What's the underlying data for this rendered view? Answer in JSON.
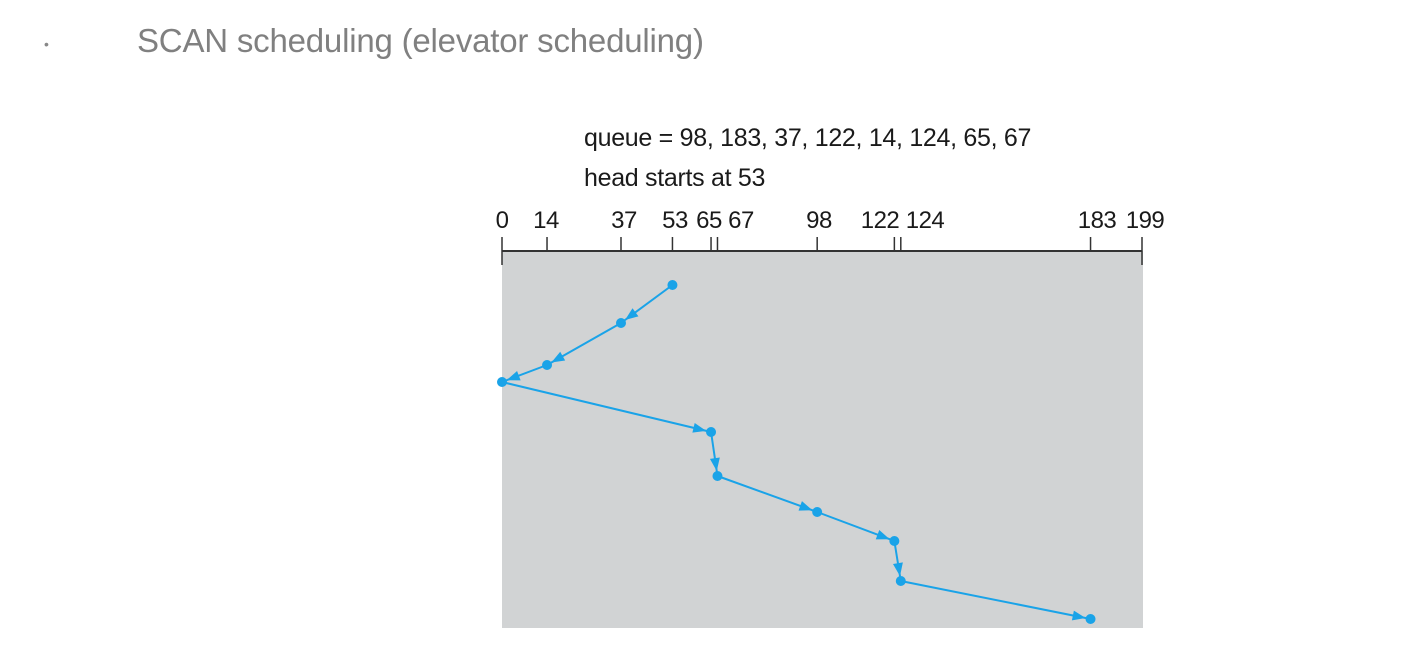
{
  "slide": {
    "bullet": "•",
    "title": "SCAN scheduling (elevator scheduling)"
  },
  "diagram": {
    "queue_label": "queue = 98, 183, 37, 122, 14, 124, 65, 67",
    "head_label": "head starts at 53",
    "cylinder_range": [
      0,
      199
    ],
    "tick_labels": [
      {
        "value": 0,
        "text": "0"
      },
      {
        "value": 14,
        "text": "14"
      },
      {
        "value": 37,
        "text": "37"
      },
      {
        "value": 53,
        "text": "53"
      },
      {
        "value": 65,
        "text": "65"
      },
      {
        "value": 67,
        "text": "67"
      },
      {
        "value": 98,
        "text": "98"
      },
      {
        "value": 122,
        "text": "122"
      },
      {
        "value": 124,
        "text": "124"
      },
      {
        "value": 183,
        "text": "183"
      },
      {
        "value": 199,
        "text": "199"
      }
    ],
    "head_path": [
      53,
      37,
      14,
      0,
      65,
      67,
      98,
      122,
      124,
      183
    ],
    "colors": {
      "path": "#1aa3e8",
      "panel": "#d1d3d4",
      "axis": "#333333"
    }
  }
}
